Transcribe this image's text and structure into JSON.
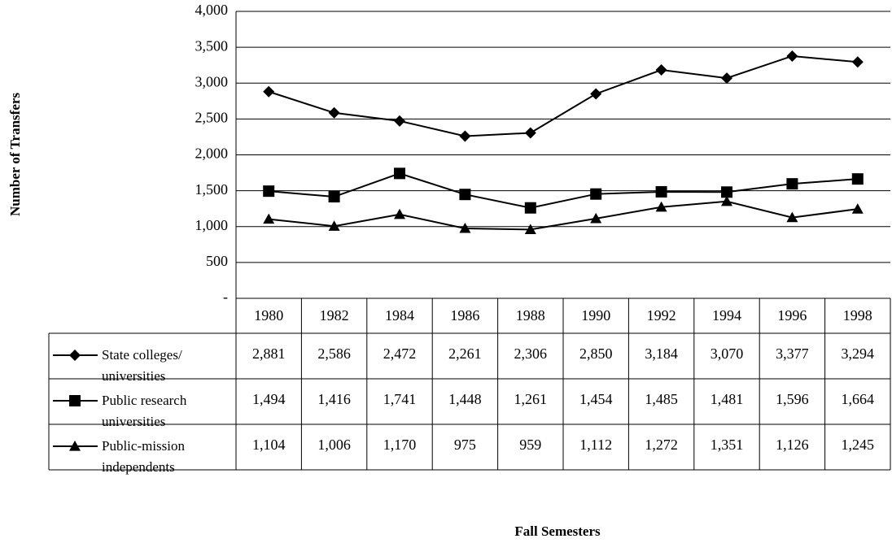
{
  "chart_data": {
    "type": "line",
    "y_label": "Number of Transfers",
    "x_label": "Fall Semesters",
    "categories": [
      "1980",
      "1982",
      "1984",
      "1986",
      "1988",
      "1990",
      "1992",
      "1994",
      "1996",
      "1998"
    ],
    "ylim": [
      0,
      4000
    ],
    "yticks": [
      {
        "value": 0,
        "label": "-"
      },
      500,
      {
        "value": 1000,
        "label": "1,000"
      },
      {
        "value": 1500,
        "label": "1,500"
      },
      {
        "value": 2000,
        "label": "2,000"
      },
      {
        "value": 2500,
        "label": "2,500"
      },
      {
        "value": 3000,
        "label": "3,000"
      },
      {
        "value": 3500,
        "label": "3,500"
      },
      {
        "value": 4000,
        "label": "4,000"
      }
    ],
    "grid": true,
    "series": [
      {
        "name": "State colleges/ universities",
        "color": "#000000",
        "marker": "diamond",
        "values": [
          2881,
          2586,
          2472,
          2261,
          2306,
          2850,
          3184,
          3070,
          3377,
          3294
        ],
        "value_labels": [
          "2,881",
          "2,586",
          "2,472",
          "2,261",
          "2,306",
          "2,850",
          "3,184",
          "3,070",
          "3,377",
          "3,294"
        ]
      },
      {
        "name": "Public research universities",
        "color": "#000000",
        "marker": "square",
        "values": [
          1494,
          1416,
          1741,
          1448,
          1261,
          1454,
          1485,
          1481,
          1596,
          1664
        ],
        "value_labels": [
          "1,494",
          "1,416",
          "1,741",
          "1,448",
          "1,261",
          "1,454",
          "1,485",
          "1,481",
          "1,596",
          "1,664"
        ]
      },
      {
        "name": "Public-mission independents",
        "color": "#000000",
        "marker": "triangle",
        "values": [
          1104,
          1006,
          1170,
          975,
          959,
          1112,
          1272,
          1351,
          1126,
          1245
        ],
        "value_labels": [
          "1,104",
          "1,006",
          "1,170",
          "975",
          "959",
          "1,112",
          "1,272",
          "1,351",
          "1,126",
          "1,245"
        ]
      }
    ]
  }
}
